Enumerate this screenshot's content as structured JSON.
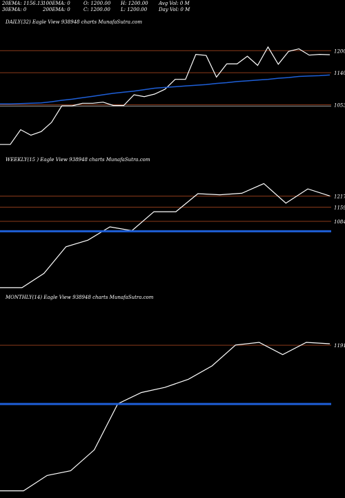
{
  "header": {
    "ema20": "20EMA: 1156.13",
    "ema100": "100EMA: 0",
    "open": "O: 1200.00",
    "high": "H: 1200.00",
    "avg_vol": "Avg Vol: 0  M",
    "ema30": "30EMA: 0",
    "ema200": "200EMA: 0",
    "close": "C: 1200.00",
    "low": "L: 1200.00",
    "day_vol": "Day Vol: 0  M"
  },
  "colors": {
    "background": "#000000",
    "price_line": "#ffffff",
    "ema_line": "#1e5fd8",
    "level_line": "#8b3a1a",
    "grey_level": "#9a9a9a",
    "text": "#ffffff"
  },
  "chart_data": [
    {
      "type": "line",
      "title": "DAILY(32) Eagle  View  938948  charts MunafaSutra.com",
      "ylim": [
        890,
        1225
      ],
      "series": [
        {
          "values": [
            945,
            945,
            985,
            970,
            980,
            1005,
            1050,
            1050,
            1057,
            1057,
            1060,
            1051,
            1051,
            1080,
            1075,
            1082,
            1095,
            1122,
            1122,
            1190,
            1187,
            1128,
            1164,
            1164,
            1185,
            1160,
            1210,
            1163,
            1198,
            1205,
            1188,
            1190,
            1189
          ]
        },
        {
          "values": [
            1055,
            1055,
            1056,
            1057,
            1058,
            1061,
            1065,
            1068,
            1072,
            1076,
            1080,
            1084,
            1087,
            1090,
            1094,
            1098,
            1100,
            1102,
            1104,
            1106,
            1108,
            1111,
            1113,
            1116,
            1118,
            1120,
            1122,
            1125,
            1127,
            1130,
            1131,
            1132,
            1134
          ]
        }
      ],
      "levels": [
        1200,
        1140,
        1053
      ],
      "level_labels": [
        "1200",
        "1140",
        "1053"
      ]
    },
    {
      "type": "line",
      "title": "WEEKLY(15                   ) Eagle  View  938948  charts MunafaSutra.com",
      "ylim": [
        720,
        1310
      ],
      "series": [
        {
          "values": [
            735,
            735,
            810,
            950,
            985,
            1055,
            1035,
            1135,
            1135,
            1230,
            1224,
            1232,
            1283,
            1180,
            1255,
            1218
          ]
        },
        {
          "values": [
            1032
          ]
        }
      ],
      "levels": [
        1217,
        1159,
        1084
      ],
      "level_labels": [
        "1217",
        "1159",
        "1084"
      ]
    },
    {
      "type": "line",
      "title": "MONTHLY(14) Eagle  View  938948  charts MunafaSutra.com",
      "ylim": [
        445,
        1340
      ],
      "series": [
        {
          "values": [
            480,
            480,
            555,
            578,
            680,
            905,
            960,
            985,
            1025,
            1090,
            1192,
            1205,
            1145,
            1205,
            1198
          ]
        },
        {
          "values": [
            904
          ]
        }
      ],
      "levels": [
        1191
      ],
      "level_labels": [
        "1191"
      ]
    }
  ]
}
